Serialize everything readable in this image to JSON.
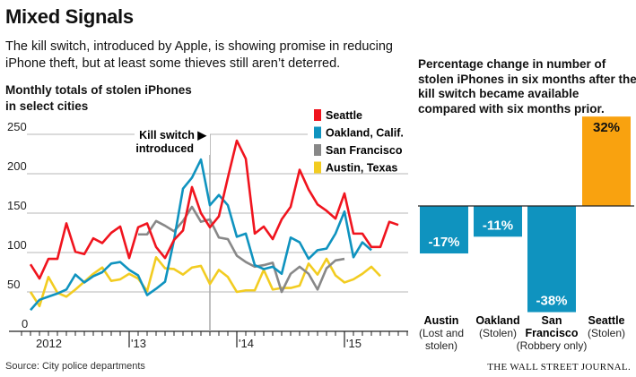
{
  "header": {
    "title": "Mixed Signals",
    "subtitle_line1": "The kill switch, introduced by Apple, is showing promise in reducing",
    "subtitle_line2": "iPhone theft, but at least some thieves still aren’t deterred."
  },
  "footer": {
    "source": "Source: City police departments",
    "publisher": "THE WALL STREET JOURNAL."
  },
  "chart_data": [
    {
      "type": "line",
      "title_line1": "Monthly totals of stolen iPhones",
      "title_line2": "in select cities",
      "x_unit": "month index (0 = first month shown, early 2012)",
      "x_tick_labels": [
        {
          "label": "2012",
          "index": 0
        },
        {
          "label": "'13",
          "index": 11
        },
        {
          "label": "'14",
          "index": 23
        },
        {
          "label": "'15",
          "index": 35
        }
      ],
      "ylim": [
        0,
        250
      ],
      "y_ticks": [
        0,
        50,
        100,
        150,
        200,
        250
      ],
      "grid": true,
      "legend_placement": "top-right",
      "annotation": {
        "line1": "Kill switch ▶",
        "line2": "introduced",
        "index": 20
      },
      "series": [
        {
          "name": "Seattle",
          "color": "#f0141e",
          "start": 0,
          "values": [
            85,
            67,
            92,
            92,
            137,
            101,
            98,
            118,
            112,
            125,
            133,
            93,
            132,
            137,
            107,
            93,
            116,
            128,
            183,
            150,
            132,
            146,
            195,
            242,
            219,
            124,
            133,
            117,
            142,
            158,
            205,
            180,
            161,
            153,
            143,
            175,
            124,
            124,
            107,
            107,
            139,
            135
          ]
        },
        {
          "name": "Oakland, Calif.",
          "color": "#0f93bf",
          "start": 0,
          "values": [
            27,
            40,
            44,
            48,
            53,
            72,
            62,
            70,
            75,
            86,
            88,
            78,
            71,
            46,
            54,
            63,
            116,
            181,
            195,
            218,
            160,
            173,
            160,
            120,
            124,
            84,
            79,
            82,
            73,
            119,
            113,
            92,
            103,
            105,
            124,
            152,
            94,
            113,
            103
          ]
        },
        {
          "name": "San Francisco",
          "color": "#888888",
          "start": 12,
          "values": [
            123,
            123,
            140,
            134,
            127,
            140,
            158,
            139,
            142,
            119,
            117,
            96,
            88,
            82,
            84,
            87,
            50,
            73,
            82,
            73,
            53,
            80,
            90,
            92
          ]
        },
        {
          "name": "Austin, Texas",
          "color": "#f2cc21",
          "start": 0,
          "values": [
            50,
            32,
            69,
            49,
            44,
            53,
            63,
            73,
            81,
            64,
            66,
            73,
            67,
            51,
            94,
            80,
            79,
            72,
            81,
            83,
            60,
            78,
            69,
            50,
            52,
            52,
            78,
            53,
            55,
            55,
            58,
            86,
            72,
            92,
            71,
            62,
            66,
            73,
            82,
            70
          ]
        }
      ]
    },
    {
      "type": "bar",
      "title_line1": "Percentage change in number of",
      "title_line2": "stolen iPhones in six months after the",
      "title_line3": "kill switch became available",
      "title_line4": "compared with six months prior.",
      "categories": [
        {
          "name": "Austin",
          "note_line1": "(Lost and",
          "note_line2": "stolen)"
        },
        {
          "name": "Oakland",
          "note_line1": "(Stolen)",
          "note_line2": ""
        },
        {
          "name": "San",
          "name_line2": "Francisco",
          "note_line1": "(Robbery only)",
          "note_line2": ""
        },
        {
          "name": "Seattle",
          "note_line1": "(Stolen)",
          "note_line2": ""
        }
      ],
      "values": [
        -17,
        -11,
        -38,
        32
      ],
      "labels": [
        "-17%",
        "-11%",
        "-38%",
        "32%"
      ],
      "colors": {
        "negative": "#0f93bf",
        "positive": "#f9a20f"
      }
    }
  ]
}
